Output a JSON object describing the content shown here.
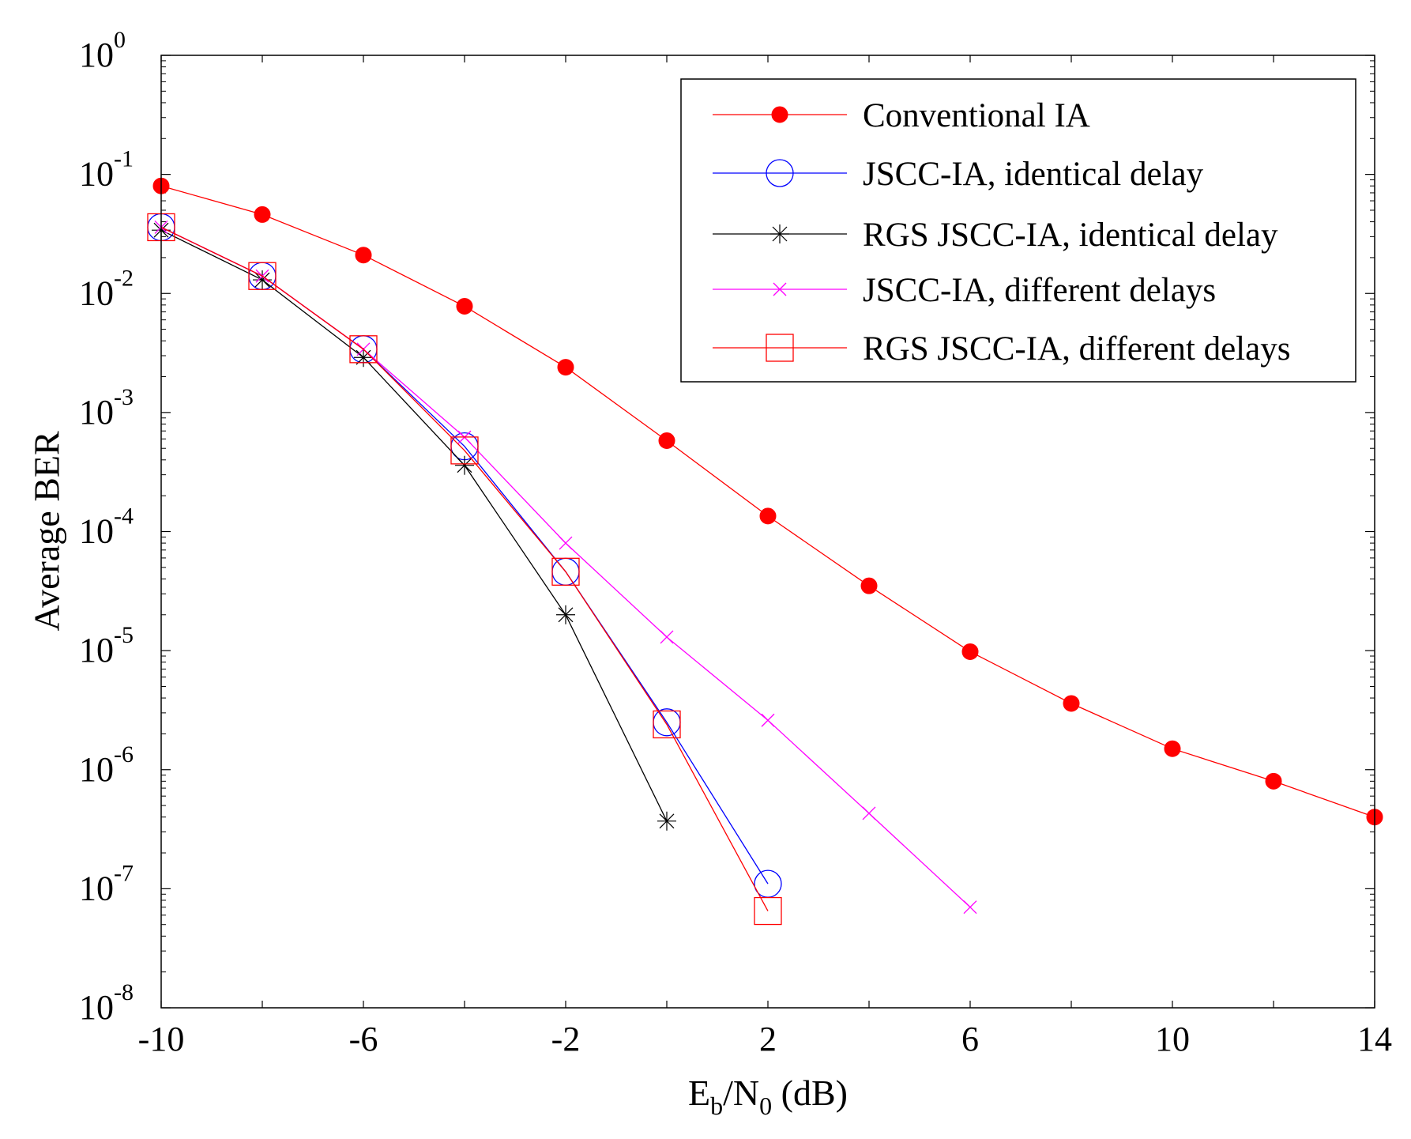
{
  "chart_data": {
    "type": "line",
    "title": "",
    "xlabel": {
      "main": "E",
      "sub1": "b",
      "mid": "/N",
      "sub2": "0",
      "tail": " (dB)"
    },
    "ylabel": "Average BER",
    "xlim": [
      -10,
      14
    ],
    "ylim_exp": [
      -8,
      0
    ],
    "y_scale": "log",
    "x_tick_values": [
      -10,
      -6,
      -2,
      2,
      6,
      10,
      14
    ],
    "x_tick_labels": [
      "-10",
      "-6",
      "-2",
      "2",
      "6",
      "10",
      "14"
    ],
    "y_tick_exponents": [
      0,
      -1,
      -2,
      -3,
      -4,
      -5,
      -6,
      -7,
      -8
    ],
    "y_tick_labels": [
      {
        "base": "10",
        "exp": "0"
      },
      {
        "base": "10",
        "exp": "-1"
      },
      {
        "base": "10",
        "exp": "-2"
      },
      {
        "base": "10",
        "exp": "-3"
      },
      {
        "base": "10",
        "exp": "-4"
      },
      {
        "base": "10",
        "exp": "-5"
      },
      {
        "base": "10",
        "exp": "-6"
      },
      {
        "base": "10",
        "exp": "-7"
      },
      {
        "base": "10",
        "exp": "-8"
      }
    ],
    "x_minor_step": 2,
    "legend_position": "top-right",
    "series": [
      {
        "name": "Conventional IA",
        "color": "#ff0000",
        "marker": "filled-circle",
        "x": [
          -10,
          -8,
          -6,
          -4,
          -2,
          0,
          2,
          4,
          6,
          8,
          10,
          12,
          14
        ],
        "y": [
          0.08,
          0.046,
          0.021,
          0.0078,
          0.0024,
          0.00058,
          0.000135,
          3.5e-05,
          9.8e-06,
          3.6e-06,
          1.5e-06,
          8e-07,
          4e-07
        ]
      },
      {
        "name": "JSCC-IA, identical delay",
        "color": "#0000ff",
        "marker": "open-circle",
        "x": [
          -10,
          -8,
          -6,
          -4,
          -2,
          0,
          2
        ],
        "y": [
          0.036,
          0.014,
          0.0034,
          0.00052,
          4.6e-05,
          2.5e-06,
          1.1e-07
        ]
      },
      {
        "name": "RGS JSCC-IA, identical delay",
        "color": "#000000",
        "marker": "star",
        "x": [
          -10,
          -8,
          -6,
          -4,
          -2,
          0
        ],
        "y": [
          0.034,
          0.013,
          0.0029,
          0.00036,
          2e-05,
          3.7e-07
        ]
      },
      {
        "name": "JSCC-IA, different delays",
        "color": "#ff00ff",
        "marker": "x",
        "x": [
          -10,
          -8,
          -6,
          -4,
          -2,
          0,
          2,
          4,
          6
        ],
        "y": [
          0.036,
          0.014,
          0.0034,
          0.00062,
          8e-05,
          1.3e-05,
          2.6e-06,
          4.3e-07,
          7e-08
        ]
      },
      {
        "name": "RGS JSCC-IA, different delays",
        "color": "#ff0000",
        "marker": "open-square",
        "x": [
          -10,
          -8,
          -6,
          -4,
          -2,
          0,
          2
        ],
        "y": [
          0.036,
          0.014,
          0.0034,
          0.00048,
          4.6e-05,
          2.4e-06,
          6.5e-08
        ]
      }
    ]
  }
}
